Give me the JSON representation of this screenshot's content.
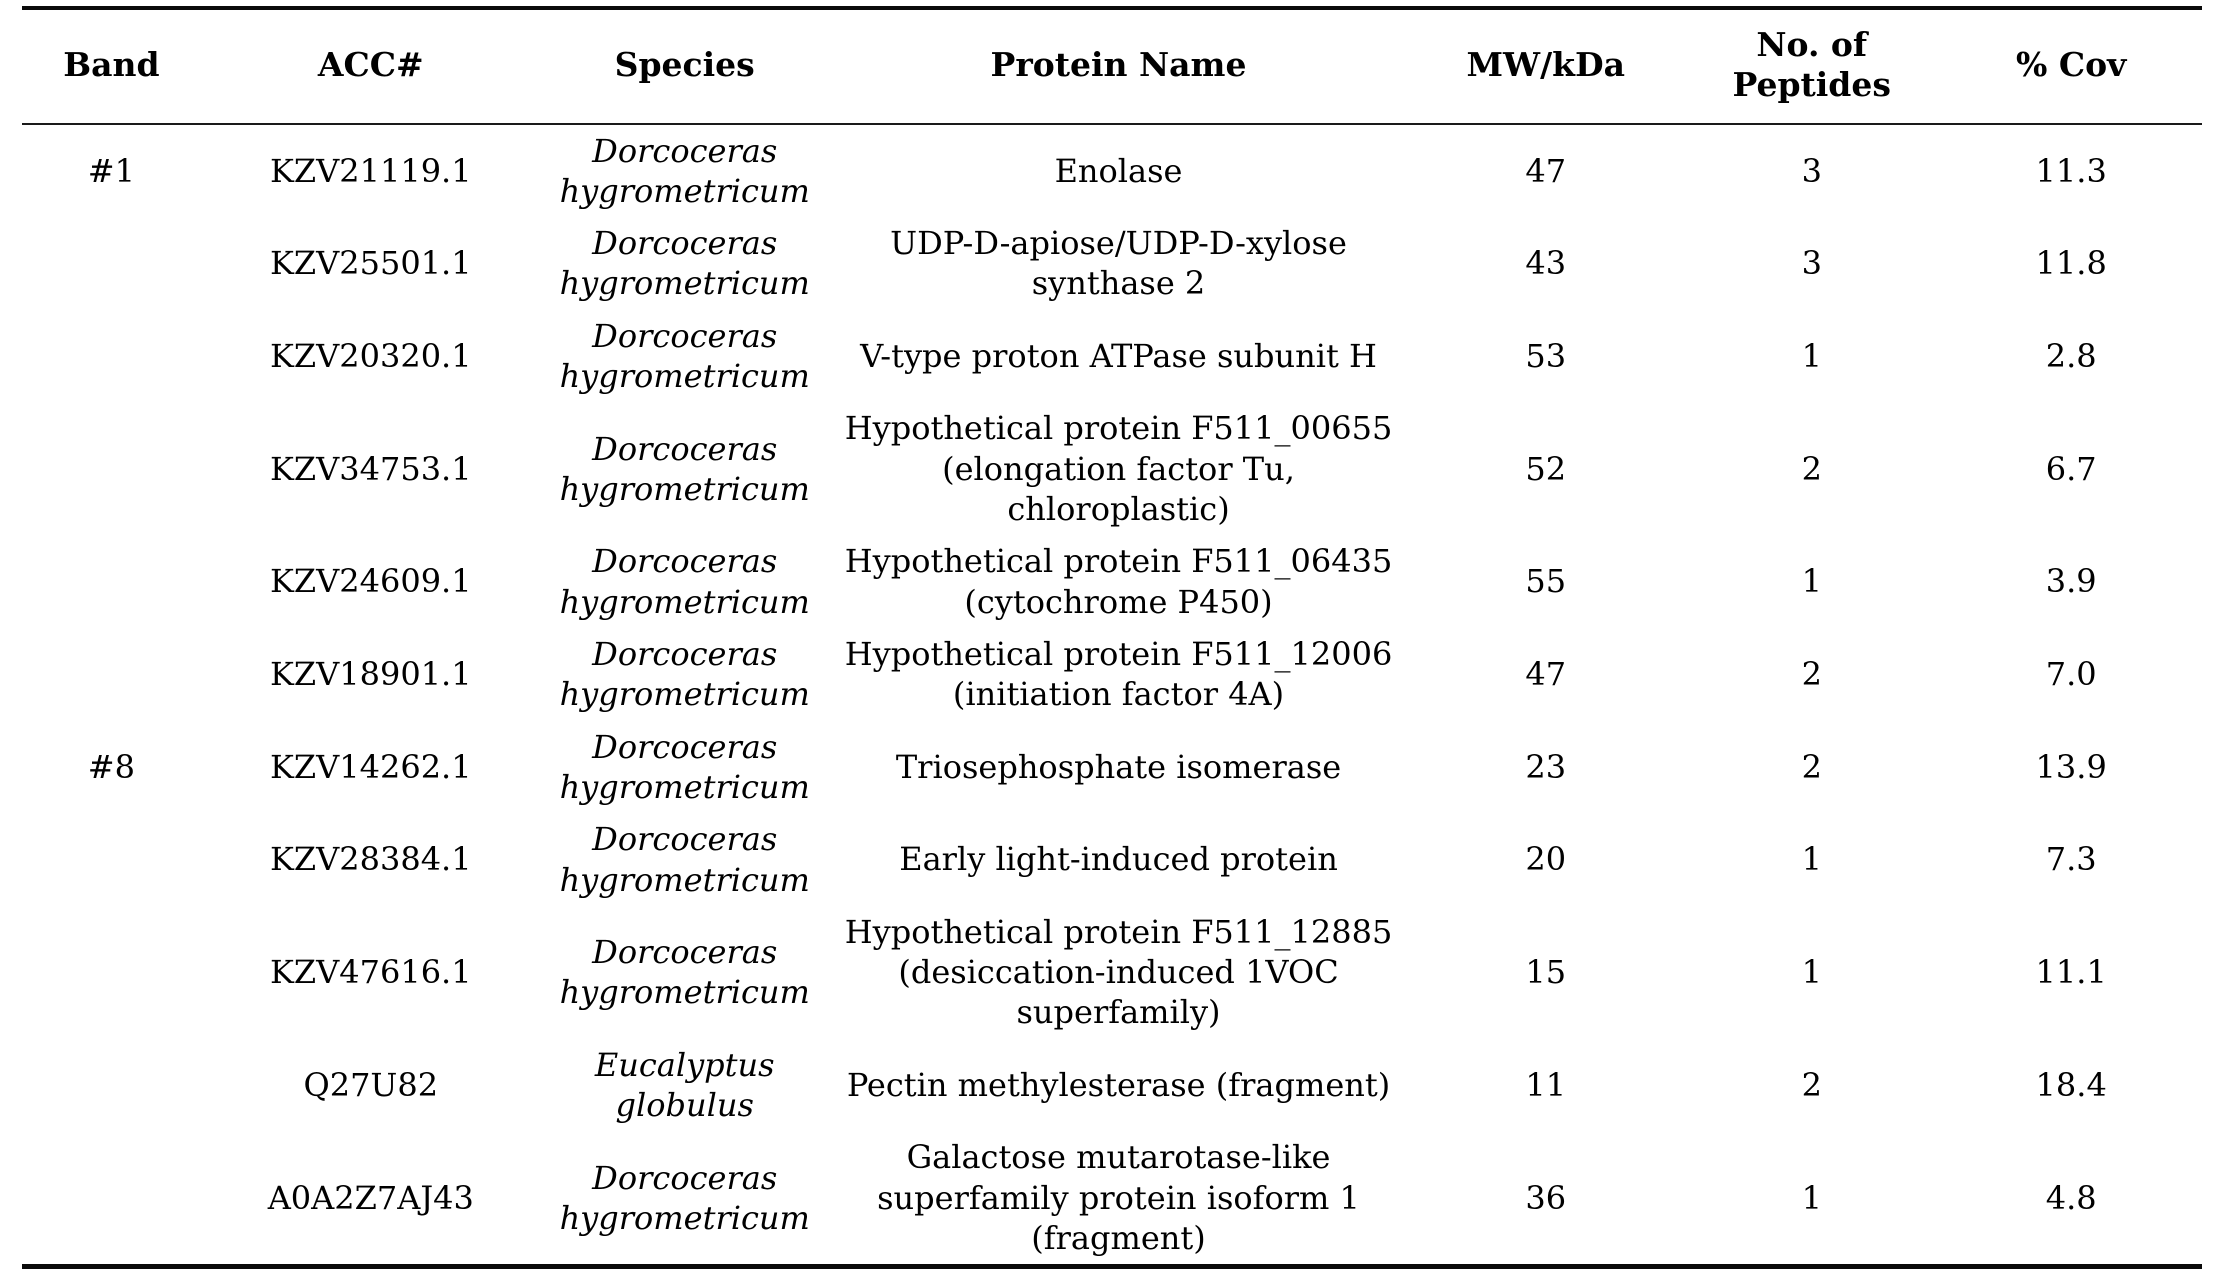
{
  "table": {
    "columns": {
      "band": {
        "label": "Band"
      },
      "acc": {
        "label": "ACC#"
      },
      "species": {
        "label": "Species"
      },
      "protein": {
        "label": "Protein Name"
      },
      "mw": {
        "label": "MW/kDa"
      },
      "peptides": {
        "label": "No. of Peptides",
        "line1": "No. of",
        "line2": "Peptides"
      },
      "cov": {
        "label": "% Cov"
      }
    },
    "rows": [
      {
        "band": "#1",
        "acc": "KZV21119.1",
        "species": "Dorcoceras hygrometricum",
        "protein": "Enolase",
        "mw": "47",
        "peptides": "3",
        "cov": "11.3"
      },
      {
        "band": "",
        "acc": "KZV25501.1",
        "species": "Dorcoceras hygrometricum",
        "protein": "UDP-D-apiose/UDP-D-xylose synthase 2",
        "mw": "43",
        "peptides": "3",
        "cov": "11.8"
      },
      {
        "band": "",
        "acc": "KZV20320.1",
        "species": "Dorcoceras hygrometricum",
        "protein": "V-type proton ATPase subunit H",
        "mw": "53",
        "peptides": "1",
        "cov": "2.8"
      },
      {
        "band": "",
        "acc": "KZV34753.1",
        "species": "Dorcoceras hygrometricum",
        "protein": "Hypothetical protein F511_00655 (elongation factor Tu, chloroplastic)",
        "mw": "52",
        "peptides": "2",
        "cov": "6.7"
      },
      {
        "band": "",
        "acc": "KZV24609.1",
        "species": "Dorcoceras hygrometricum",
        "protein": "Hypothetical protein F511_06435 (cytochrome P450)",
        "mw": "55",
        "peptides": "1",
        "cov": "3.9"
      },
      {
        "band": "",
        "acc": "KZV18901.1",
        "species": "Dorcoceras hygrometricum",
        "protein": "Hypothetical protein F511_12006 (initiation factor 4A)",
        "mw": "47",
        "peptides": "2",
        "cov": "7.0"
      },
      {
        "band": "#8",
        "acc": "KZV14262.1",
        "species": "Dorcoceras hygrometricum",
        "protein": "Triosephosphate isomerase",
        "mw": "23",
        "peptides": "2",
        "cov": "13.9"
      },
      {
        "band": "",
        "acc": "KZV28384.1",
        "species": "Dorcoceras hygrometricum",
        "protein": "Early light-induced protein",
        "mw": "20",
        "peptides": "1",
        "cov": "7.3"
      },
      {
        "band": "",
        "acc": "KZV47616.1",
        "species": "Dorcoceras hygrometricum",
        "protein": "Hypothetical protein F511_12885 (desiccation-induced 1VOC superfamily)",
        "mw": "15",
        "peptides": "1",
        "cov": "11.1"
      },
      {
        "band": "",
        "acc": "Q27U82",
        "species": "Eucalyptus globulus",
        "protein": "Pectin methylesterase (fragment)",
        "mw": "11",
        "peptides": "2",
        "cov": "18.4"
      },
      {
        "band": "",
        "acc": "A0A2Z7AJ43",
        "species": "Dorcoceras hygrometricum",
        "protein": "Galactose mutarotase-like superfamily protein isoform 1 (fragment)",
        "mw": "36",
        "peptides": "1",
        "cov": "4.8"
      }
    ]
  }
}
